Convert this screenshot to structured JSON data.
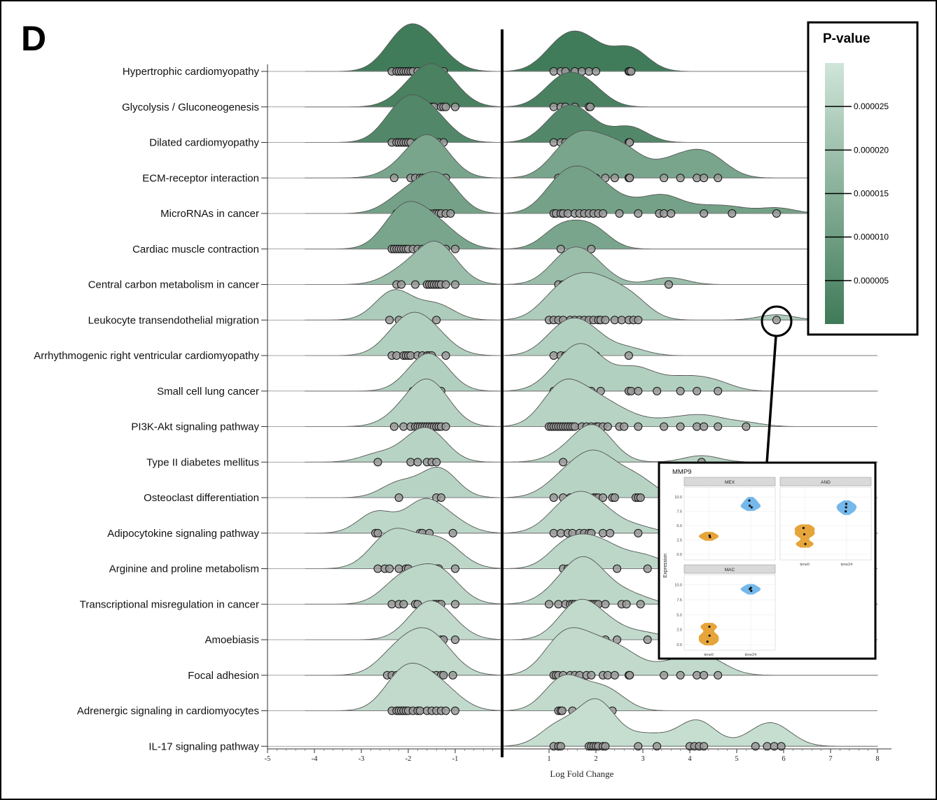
{
  "panel_label": "D",
  "chart_data": {
    "type": "ridgeline",
    "title": "",
    "xlabel": "Log Fold Change",
    "ylabel": "",
    "xlim": [
      -5,
      8
    ],
    "xticks": [
      -5,
      -4,
      -3,
      -2,
      -1,
      1,
      2,
      3,
      4,
      5,
      6,
      7,
      8
    ],
    "vertical_line_at": 0,
    "fill_color_low_p": "#3f7a58",
    "fill_color_high_p": "#cfe5d9",
    "outline_color": "#555555",
    "legend": {
      "title": "P-value",
      "ticks": [
        "0.000025",
        "0.000020",
        "0.000015",
        "0.000010",
        "0.000005"
      ],
      "tick_values": [
        2.5e-05,
        2e-05,
        1.5e-05,
        1e-05,
        5e-06
      ],
      "range": [
        0,
        3e-05
      ],
      "placement": "top-right"
    },
    "pathways": [
      {
        "name": "Hypertrophic cardiomyopathy",
        "p": 5e-07,
        "points": [
          -2.35,
          -2.25,
          -2.2,
          -2.15,
          -2.1,
          -2.05,
          -2.0,
          -1.95,
          -1.9,
          -1.8,
          -1.7,
          -1.6,
          -1.55,
          -1.5,
          -1.35,
          -1.25,
          1.1,
          1.25,
          1.35,
          1.55,
          1.7,
          1.85,
          2.0,
          2.7,
          2.72,
          2.75
        ]
      },
      {
        "name": "Glycolysis / Gluconeogenesis",
        "p": 2e-06,
        "points": [
          -2.1,
          -1.95,
          -1.8,
          -1.65,
          -1.6,
          -1.55,
          -1.5,
          -1.45,
          -1.3,
          -1.25,
          -1.2,
          -1.0,
          1.1,
          1.25,
          1.35,
          1.55,
          1.85,
          1.88
        ]
      },
      {
        "name": "Dilated cardiomyopathy",
        "p": 4e-06,
        "points": [
          -2.35,
          -2.25,
          -2.2,
          -2.15,
          -2.1,
          -2.05,
          -2.0,
          -1.95,
          -1.8,
          -1.7,
          -1.6,
          -1.55,
          -1.5,
          -1.35,
          -1.25,
          1.1,
          1.25,
          1.35,
          1.55,
          1.7,
          1.85,
          2.7,
          2.72
        ]
      },
      {
        "name": "ECM-receptor interaction",
        "p": 1.2e-05,
        "points": [
          -2.3,
          -1.95,
          -1.85,
          -1.75,
          -1.7,
          -1.65,
          -1.6,
          -1.55,
          -1.45,
          -1.4,
          -1.3,
          -1.2,
          1.2,
          1.35,
          1.55,
          1.7,
          1.8,
          2.0,
          2.2,
          2.4,
          2.7,
          2.72,
          3.45,
          3.8,
          4.15,
          4.3,
          4.6
        ]
      },
      {
        "name": "MicroRNAs in cancer",
        "p": 1.1e-05,
        "points": [
          -2.25,
          -2.15,
          -1.9,
          -1.8,
          -1.55,
          -1.45,
          -1.4,
          -1.35,
          -1.3,
          -1.2,
          -1.1,
          1.1,
          1.15,
          1.25,
          1.3,
          1.4,
          1.55,
          1.65,
          1.75,
          1.85,
          1.95,
          2.05,
          2.15,
          2.5,
          2.9,
          3.35,
          3.45,
          3.6,
          4.3,
          4.9,
          5.85
        ]
      },
      {
        "name": "Cardiac muscle contraction",
        "p": 1.2e-05,
        "points": [
          -2.35,
          -2.3,
          -2.25,
          -2.2,
          -2.15,
          -2.1,
          -2.05,
          -2.0,
          -1.9,
          -1.8,
          -1.7,
          -1.6,
          -1.55,
          -1.5,
          -1.3,
          -1.2,
          -1.0,
          1.25,
          1.9
        ]
      },
      {
        "name": "Central carbon metabolism in cancer",
        "p": 1.9e-05,
        "points": [
          -2.25,
          -2.15,
          -1.85,
          -1.6,
          -1.55,
          -1.5,
          -1.45,
          -1.4,
          -1.35,
          -1.3,
          -1.2,
          -1.0,
          1.2,
          1.3,
          1.45,
          1.6,
          1.75,
          1.8,
          2.1,
          3.55
        ]
      },
      {
        "name": "Leukocyte transendothelial migration",
        "p": 2.3e-05,
        "points": [
          -2.4,
          -2.2,
          -1.4,
          1.0,
          1.1,
          1.2,
          1.3,
          1.45,
          1.55,
          1.65,
          1.75,
          1.85,
          1.95,
          2.05,
          2.1,
          2.2,
          2.4,
          2.55,
          2.7,
          2.8,
          2.9,
          5.85
        ]
      },
      {
        "name": "Arrhythmogenic right ventricular cardiomyopathy",
        "p": 2.4e-05,
        "points": [
          -2.35,
          -2.25,
          -2.1,
          -2.05,
          -2.0,
          -1.95,
          -1.8,
          -1.7,
          -1.6,
          -1.55,
          -1.5,
          -1.2,
          1.1,
          1.25,
          1.35,
          1.55,
          1.7,
          1.85,
          2.0,
          2.7
        ]
      },
      {
        "name": "Small cell lung cancer",
        "p": 2.4e-05,
        "points": [
          -1.9,
          -1.75,
          -1.65,
          -1.6,
          -1.55,
          -1.45,
          -1.4,
          -1.3,
          1.1,
          1.3,
          1.45,
          1.55,
          1.65,
          1.8,
          1.85,
          1.9,
          2.1,
          2.7,
          2.75,
          2.9,
          3.3,
          3.8,
          4.15,
          4.6
        ]
      },
      {
        "name": "PI3K-Akt signaling pathway",
        "p": 2.5e-05,
        "points": [
          -2.3,
          -2.1,
          -1.95,
          -1.85,
          -1.8,
          -1.75,
          -1.7,
          -1.65,
          -1.6,
          -1.55,
          -1.5,
          -1.45,
          -1.4,
          -1.35,
          -1.3,
          -1.2,
          1.0,
          1.05,
          1.1,
          1.15,
          1.2,
          1.25,
          1.3,
          1.35,
          1.4,
          1.45,
          1.5,
          1.55,
          1.7,
          1.8,
          1.9,
          2.0,
          2.05,
          2.15,
          2.25,
          2.5,
          2.6,
          2.9,
          3.45,
          3.8,
          4.15,
          4.3,
          4.6,
          5.2
        ]
      },
      {
        "name": "Type II diabetes mellitus",
        "p": 2.5e-05,
        "points": [
          -2.65,
          -1.95,
          -1.8,
          -1.6,
          -1.5,
          -1.4,
          1.3,
          1.7,
          1.85,
          1.9,
          1.95,
          2.05,
          2.2,
          4.25
        ]
      },
      {
        "name": "Osteoclast differentiation",
        "p": 2.5e-05,
        "points": [
          -2.2,
          -1.4,
          -1.3,
          1.1,
          1.3,
          1.45,
          1.6,
          1.75,
          1.85,
          1.95,
          2.0,
          2.05,
          2.15,
          2.35,
          2.4,
          2.85,
          2.9,
          2.95
        ]
      },
      {
        "name": "Adipocytokine signaling pathway",
        "p": 2.6e-05,
        "points": [
          -2.7,
          -2.65,
          -1.75,
          -1.7,
          -1.55,
          -1.05,
          1.1,
          1.25,
          1.4,
          1.5,
          1.65,
          1.75,
          1.85,
          1.9,
          2.15,
          2.3,
          2.9
        ]
      },
      {
        "name": "Arginine and proline metabolism",
        "p": 2.6e-05,
        "points": [
          -2.65,
          -2.5,
          -2.4,
          -2.2,
          -2.05,
          -2.0,
          -1.45,
          -1.4,
          -1.35,
          -1.0,
          1.3,
          1.4,
          1.85,
          2.0,
          2.45,
          3.1
        ]
      },
      {
        "name": "Transcriptional misregulation in cancer",
        "p": 2.6e-05,
        "points": [
          -2.35,
          -2.2,
          -2.1,
          -1.85,
          -1.8,
          -1.45,
          -1.4,
          -1.35,
          -1.3,
          -1.0,
          1.0,
          1.2,
          1.35,
          1.45,
          1.5,
          1.55,
          1.6,
          1.65,
          1.7,
          1.75,
          1.8,
          1.85,
          1.9,
          1.95,
          2.0,
          2.05,
          2.2,
          2.55,
          2.65,
          2.95
        ]
      },
      {
        "name": "Amoebiasis",
        "p": 2.7e-05,
        "points": [
          -1.9,
          -1.75,
          -1.65,
          -1.6,
          -1.55,
          -1.45,
          -1.3,
          -1.25,
          -1.0,
          1.4,
          1.45,
          1.5,
          1.65,
          1.75,
          1.85,
          1.9,
          2.2,
          2.45,
          3.1
        ]
      },
      {
        "name": "Focal adhesion",
        "p": 2.7e-05,
        "points": [
          -2.45,
          -2.35,
          -2.25,
          -2.2,
          -2.15,
          -1.9,
          -1.85,
          -1.8,
          -1.75,
          -1.65,
          -1.6,
          -1.55,
          -1.5,
          -1.4,
          -1.3,
          -1.25,
          -1.05,
          1.1,
          1.15,
          1.2,
          1.3,
          1.45,
          1.55,
          1.65,
          1.8,
          1.9,
          2.15,
          2.25,
          2.4,
          2.7,
          2.72,
          3.45,
          3.8,
          4.15,
          4.3,
          4.6
        ]
      },
      {
        "name": "Adrenergic signaling in cardiomyocytes",
        "p": 2.7e-05,
        "points": [
          -2.35,
          -2.25,
          -2.2,
          -2.15,
          -2.1,
          -2.05,
          -2.0,
          -1.9,
          -1.8,
          -1.75,
          -1.6,
          -1.5,
          -1.4,
          -1.3,
          -1.2,
          -1.0,
          1.2,
          1.25,
          1.28,
          1.5,
          1.9,
          2.2,
          2.35
        ]
      },
      {
        "name": "IL-17 signaling pathway",
        "p": 2.8e-05,
        "points": [
          1.1,
          1.2,
          1.25,
          1.85,
          1.9,
          1.95,
          2.0,
          2.05,
          2.15,
          2.2,
          2.9,
          3.3,
          4.0,
          4.1,
          4.2,
          4.3,
          5.4,
          5.65,
          5.8,
          5.95
        ]
      }
    ],
    "inset": {
      "title": "MMP9",
      "ylabel": "Expression",
      "facets": [
        {
          "name": "MEX",
          "x": [
            "time0",
            "time24"
          ],
          "t0": [
            3.0,
            3.3
          ],
          "t24": [
            8.2,
            8.5,
            9.4
          ]
        },
        {
          "name": "AND",
          "x": [
            "time0",
            "time24"
          ],
          "t0": [
            1.8,
            3.5,
            4.6
          ],
          "t24": [
            7.5,
            8.2,
            8.8
          ]
        },
        {
          "name": "MAC",
          "x": [
            "time0",
            "time24"
          ],
          "t0": [
            0.5,
            1.5,
            3.0
          ],
          "t24": [
            9.0,
            9.3,
            9.5
          ]
        }
      ],
      "yticks": [
        "0.0",
        "2.5",
        "5.0",
        "7.5",
        "10.0"
      ],
      "time0_color": "#e6a53a",
      "time24_color": "#74b8ec"
    }
  }
}
